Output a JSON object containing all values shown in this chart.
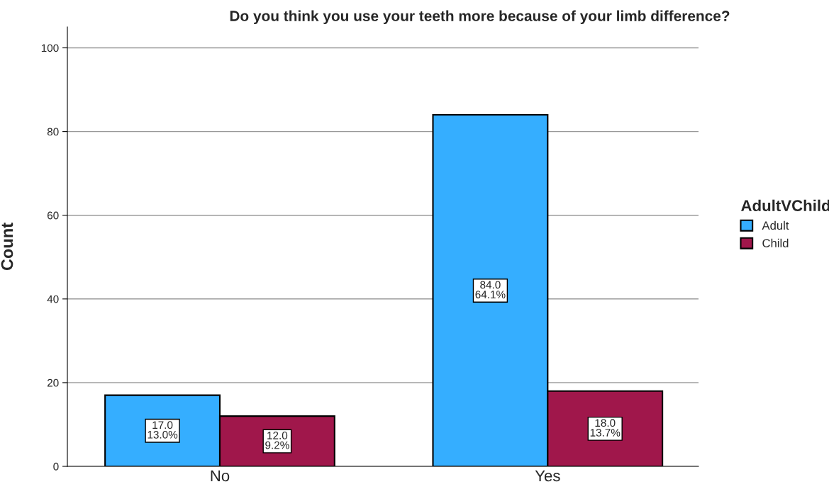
{
  "chart_data": {
    "type": "bar",
    "title": "Do you think you use your teeth more because of your limb difference?",
    "ylabel": "Count",
    "legend_title": "AdultVChild",
    "categories": [
      "No",
      "Yes"
    ],
    "series": [
      {
        "name": "Adult",
        "color": "#35aeff",
        "values": [
          17,
          84
        ],
        "value_labels": [
          "17.0\n13.0%",
          "84.0\n64.1%"
        ]
      },
      {
        "name": "Child",
        "color": "#a0174b",
        "values": [
          12,
          18
        ],
        "value_labels": [
          "12.0\n9.2%",
          "18.0\n13.7%"
        ]
      }
    ],
    "ylim": [
      0,
      105
    ],
    "yticks": [
      0,
      20,
      40,
      60,
      80,
      100
    ],
    "grid": "y",
    "legend": "right"
  }
}
